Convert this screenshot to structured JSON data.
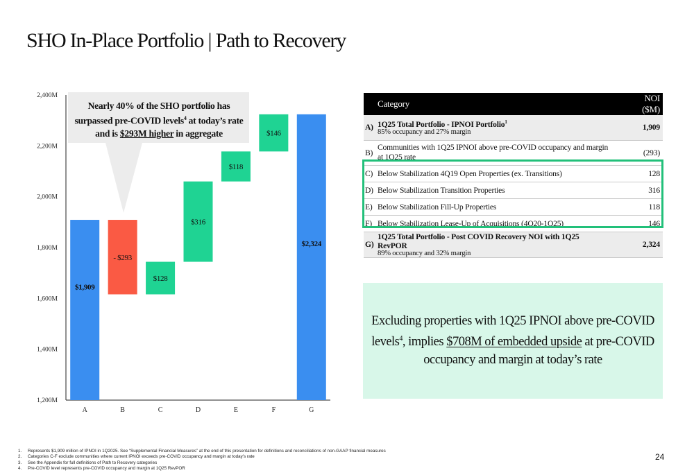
{
  "slide": {
    "title": "SHO In-Place Portfolio | Path to Recovery",
    "page_number": "24"
  },
  "callout": {
    "line1": "Nearly 40% of the SHO portfolio has",
    "line2_pre": "surpassed pre-COVID levels",
    "line2_sup": "4",
    "line2_post": " at today’s rate",
    "line3_pre": "and is ",
    "line3_underline": "$293M higher",
    "line3_post": " in aggregate"
  },
  "table": {
    "headers": [
      "Category",
      "NOI ($M)"
    ],
    "rows": [
      {
        "letter": "A)",
        "label": "1Q25 Total Portfolio - IPNOI Portfolio",
        "sup": "1",
        "sub": "85% occupancy and 27% margin",
        "value": "1,909"
      },
      {
        "letter": "B)",
        "label": "Communities with 1Q25 IPNOI above pre-COVID occupancy and margin at 1Q25 rate",
        "value": "(293)"
      },
      {
        "letter": "C)",
        "label": "Below Stabilization 4Q19 Open Properties (ex. Transitions)",
        "value": "128"
      },
      {
        "letter": "D)",
        "label": "Below Stabilization Transition Properties",
        "value": "316"
      },
      {
        "letter": "E)",
        "label": "Below Stabilization Fill-Up Properties",
        "value": "118"
      },
      {
        "letter": "F)",
        "label": "Below Stabilization Lease-Up of Acquisitions (4Q20-1Q25)",
        "value": "146"
      },
      {
        "letter": "G)",
        "label": "1Q25 Total Portfolio - Post COVID Recovery NOI with 1Q25 RevPOR",
        "sub": "89% occupancy and 32% margin",
        "value": "2,324"
      }
    ]
  },
  "summary": {
    "line1": "Excluding properties with 1Q25 IPNOI above pre-COVID",
    "line2_pre": "levels",
    "line2_sup": "4",
    "line2_mid": ", implies ",
    "line2_underline": "$708M of embedded upside",
    "line2_post": " at pre-COVID",
    "line3": "occupancy and margin at today’s rate"
  },
  "footnotes": [
    {
      "n": "1.",
      "text": "Represents $1,909 million of IPNOI in 1Q2025. See “Supplemental Financial Measures” at the end of this presentation for definitions and reconciliations of non-GAAP financial measures"
    },
    {
      "n": "2.",
      "text": "Categories C-F exclude communities where current IPNOI exceeds pre-COVID occupancy and margin at today’s rate"
    },
    {
      "n": "3.",
      "text": "See the Appendix for full definitions of Path to Recovery categories"
    },
    {
      "n": "4.",
      "text": "Pre-COVID level represents pre-COVID occupancy and margin at 1Q25 RevPOR"
    }
  ],
  "colors": {
    "total": "#3a8ef0",
    "negative": "#fa5a44",
    "positive": "#1fd393",
    "callout_bg": "#ececec",
    "summary_bg": "#d8f7e9",
    "highlight_border": "#22c07a"
  },
  "chart_data": {
    "type": "bar",
    "subtype": "waterfall",
    "categories": [
      "A",
      "B",
      "C",
      "D",
      "E",
      "F",
      "G"
    ],
    "bars": [
      {
        "category": "A",
        "kind": "total",
        "start": 1200,
        "end": 1909,
        "label": "$1,909"
      },
      {
        "category": "B",
        "kind": "decrease",
        "start": 1909,
        "end": 1616,
        "label": "- $293"
      },
      {
        "category": "C",
        "kind": "increase",
        "start": 1616,
        "end": 1744,
        "label": "$128"
      },
      {
        "category": "D",
        "kind": "increase",
        "start": 1744,
        "end": 2060,
        "label": "$316"
      },
      {
        "category": "E",
        "kind": "increase",
        "start": 2060,
        "end": 2178,
        "label": "$118"
      },
      {
        "category": "F",
        "kind": "increase",
        "start": 2178,
        "end": 2324,
        "label": "$146"
      },
      {
        "category": "G",
        "kind": "total",
        "start": 1200,
        "end": 2324,
        "label": "$2,324"
      }
    ],
    "ylim": [
      1200,
      2400
    ],
    "yticks": [
      {
        "value": 2400,
        "label": "2,400M"
      },
      {
        "value": 2200,
        "label": "2,200M"
      },
      {
        "value": 2000,
        "label": "2,000M"
      },
      {
        "value": 1800,
        "label": "1,800M"
      },
      {
        "value": 1600,
        "label": "1,600M"
      },
      {
        "value": 1400,
        "label": "1,400M"
      },
      {
        "value": 1200,
        "label": "1,200M"
      }
    ],
    "grid": false,
    "xlabel": "",
    "ylabel": ""
  }
}
